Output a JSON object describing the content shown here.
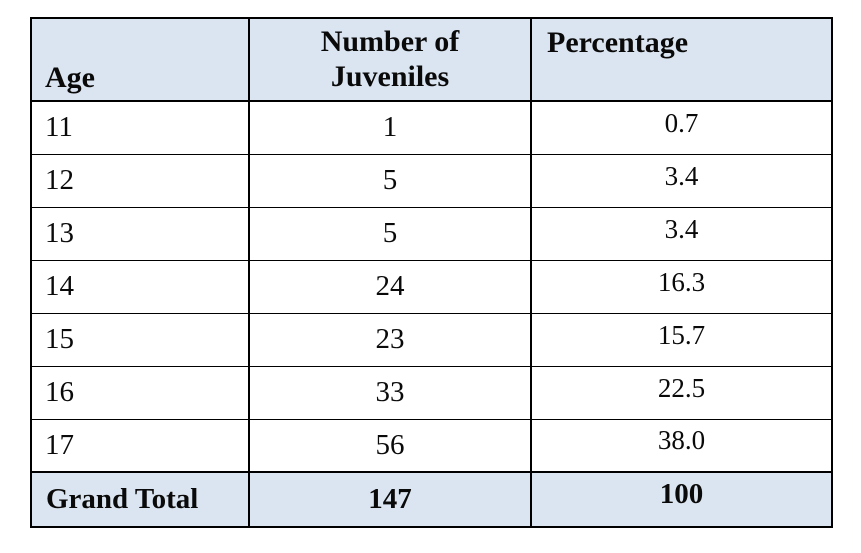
{
  "chart_data": {
    "type": "table",
    "title": "",
    "columns": [
      "Age",
      "Number of Juveniles",
      "Percentage"
    ],
    "rows": [
      [
        "11",
        "1",
        "0.7"
      ],
      [
        "12",
        "5",
        "3.4"
      ],
      [
        "13",
        "5",
        "3.4"
      ],
      [
        "14",
        "24",
        "16.3"
      ],
      [
        "15",
        "23",
        "15.7"
      ],
      [
        "16",
        "33",
        "22.5"
      ],
      [
        "17",
        "56",
        "38.0"
      ]
    ],
    "grand_total": {
      "label": "Grand Total",
      "number_of_juveniles": "147",
      "percentage": "100"
    }
  },
  "colors": {
    "header_bg": "#dbe5f1",
    "total_bg": "#dbe5f1",
    "border": "#000000",
    "text": "#0a0a0a"
  }
}
